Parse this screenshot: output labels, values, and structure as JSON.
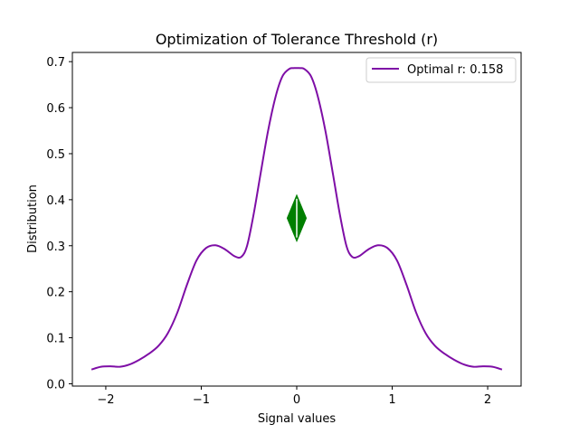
{
  "chart_data": {
    "type": "line",
    "title": "Optimization of Tolerance Threshold (r)",
    "xlabel": "Signal values",
    "ylabel": "Distribution",
    "xlim": [
      -2.35,
      2.35
    ],
    "ylim": [
      -0.005,
      0.72
    ],
    "xticks": [
      -2,
      -1,
      0,
      1,
      2
    ],
    "xtick_labels": [
      "−2",
      "−1",
      "0",
      "1",
      "2"
    ],
    "yticks": [
      0.0,
      0.1,
      0.2,
      0.3,
      0.4,
      0.5,
      0.6,
      0.7
    ],
    "ytick_labels": [
      "0.0",
      "0.1",
      "0.2",
      "0.3",
      "0.4",
      "0.5",
      "0.6",
      "0.7"
    ],
    "grid": false,
    "legend_position": "top-right",
    "series": [
      {
        "name": "Optimal r: 0.158",
        "color": "#7e0ea6",
        "x": [
          -2.15,
          -2.05,
          -1.95,
          -1.85,
          -1.75,
          -1.65,
          -1.55,
          -1.45,
          -1.35,
          -1.25,
          -1.15,
          -1.05,
          -0.95,
          -0.85,
          -0.75,
          -0.65,
          -0.58,
          -0.52,
          -0.45,
          -0.38,
          -0.3,
          -0.22,
          -0.15,
          -0.08,
          -0.03,
          0.0,
          0.03,
          0.08,
          0.15,
          0.22,
          0.3,
          0.38,
          0.45,
          0.52,
          0.58,
          0.65,
          0.75,
          0.85,
          0.95,
          1.05,
          1.15,
          1.25,
          1.35,
          1.45,
          1.55,
          1.65,
          1.75,
          1.85,
          1.95,
          2.05,
          2.15
        ],
        "y": [
          0.031,
          0.037,
          0.038,
          0.037,
          0.042,
          0.052,
          0.065,
          0.082,
          0.11,
          0.155,
          0.215,
          0.268,
          0.295,
          0.301,
          0.292,
          0.277,
          0.276,
          0.3,
          0.37,
          0.455,
          0.55,
          0.625,
          0.668,
          0.684,
          0.686,
          0.686,
          0.686,
          0.684,
          0.668,
          0.625,
          0.55,
          0.455,
          0.37,
          0.3,
          0.276,
          0.277,
          0.292,
          0.301,
          0.295,
          0.268,
          0.215,
          0.155,
          0.11,
          0.082,
          0.065,
          0.052,
          0.042,
          0.037,
          0.038,
          0.037,
          0.031
        ]
      }
    ],
    "annotations": [
      {
        "type": "double-arrow",
        "color": "#007f00",
        "x_center": 0.0,
        "y_center": 0.36,
        "y_extent": [
          0.31,
          0.41
        ],
        "x_half_width": 0.1
      }
    ]
  }
}
